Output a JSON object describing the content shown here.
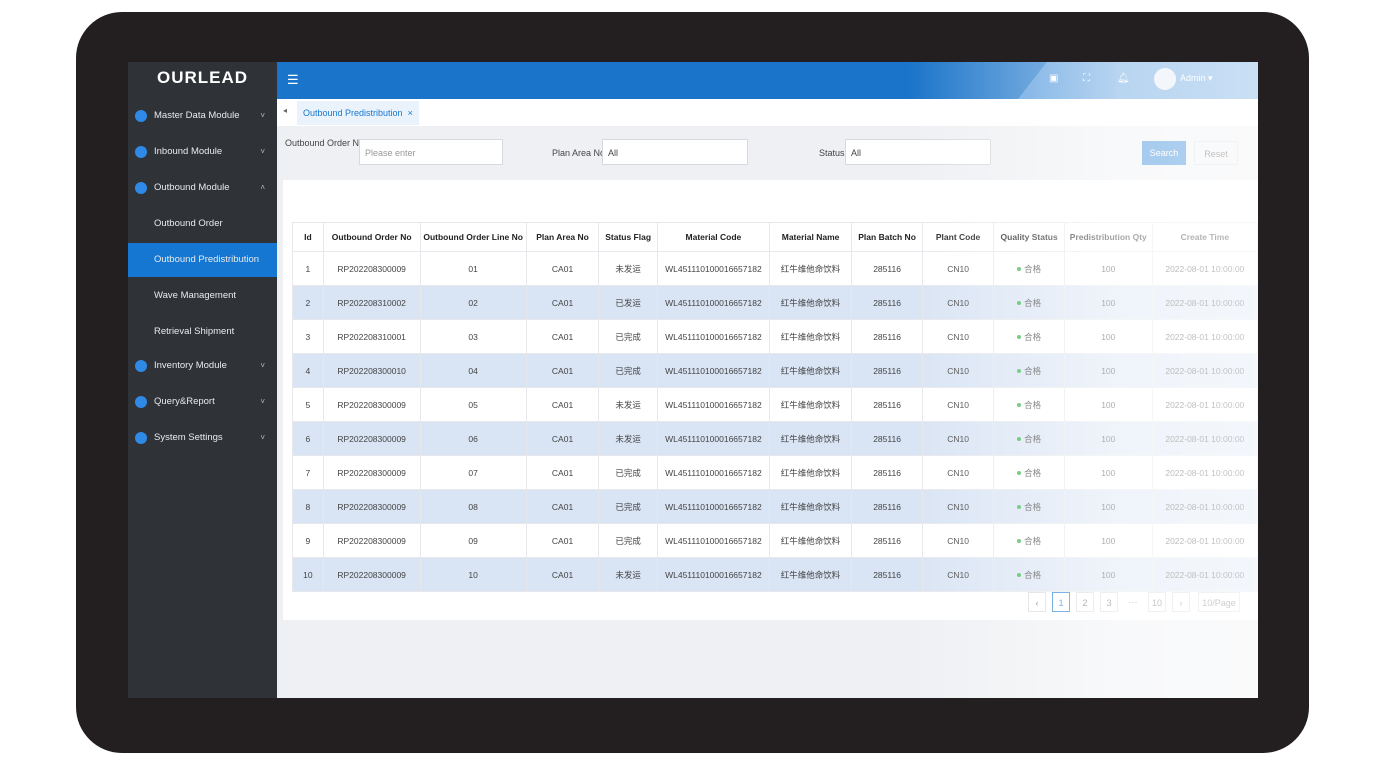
{
  "sidebar": {
    "logo": "OURLEAD",
    "modules": [
      {
        "label": "Master Data Module"
      },
      {
        "label": "Inbound Module"
      },
      {
        "label": "Outbound Module"
      }
    ],
    "outbound_items": [
      {
        "label": "Outbound Order"
      },
      {
        "label": "Outbound Predistribution",
        "active": true
      },
      {
        "label": "Wave Management"
      },
      {
        "label": "Retrieval Shipment"
      }
    ],
    "more_modules": [
      {
        "label": "Inventory Module"
      },
      {
        "label": "Query&Report"
      },
      {
        "label": "System Settings"
      }
    ]
  },
  "header": {
    "user": "Admin"
  },
  "tabs": [
    {
      "label": "Outbound Predistribution"
    }
  ],
  "filters": {
    "order_label": "Outbound Order No",
    "order_placeholder": "Please enter",
    "area_label": "Plan Area No",
    "area_value": "All",
    "status_label": "Status",
    "status_value": "All",
    "search": "Search",
    "reset": "Reset"
  },
  "table": {
    "columns": [
      "Id",
      "Outbound Order No",
      "Outbound Order Line No",
      "Plan Area No",
      "Status Flag",
      "Material Code",
      "Material Name",
      "Plan Batch No",
      "Plant Code",
      "Quality Status",
      "Predistribution Qty",
      "Create Time"
    ],
    "rows": [
      [
        "1",
        "RP202208300009",
        "01",
        "CA01",
        "未发运",
        "WL451110100016657182",
        "红牛维他命饮料",
        "285116",
        "CN10",
        "合格",
        "100",
        "2022-08-01 10:00:00"
      ],
      [
        "2",
        "RP202208310002",
        "02",
        "CA01",
        "已发运",
        "WL451110100016657182",
        "红牛维他命饮料",
        "285116",
        "CN10",
        "合格",
        "100",
        "2022-08-01 10:00:00"
      ],
      [
        "3",
        "RP202208310001",
        "03",
        "CA01",
        "已完成",
        "WL451110100016657182",
        "红牛维他命饮料",
        "285116",
        "CN10",
        "合格",
        "100",
        "2022-08-01 10:00:00"
      ],
      [
        "4",
        "RP202208300010",
        "04",
        "CA01",
        "已完成",
        "WL451110100016657182",
        "红牛维他命饮料",
        "285116",
        "CN10",
        "合格",
        "100",
        "2022-08-01 10:00:00"
      ],
      [
        "5",
        "RP202208300009",
        "05",
        "CA01",
        "未发运",
        "WL451110100016657182",
        "红牛维他命饮料",
        "285116",
        "CN10",
        "合格",
        "100",
        "2022-08-01 10:00:00"
      ],
      [
        "6",
        "RP202208300009",
        "06",
        "CA01",
        "未发运",
        "WL451110100016657182",
        "红牛维他命饮料",
        "285116",
        "CN10",
        "合格",
        "100",
        "2022-08-01 10:00:00"
      ],
      [
        "7",
        "RP202208300009",
        "07",
        "CA01",
        "已完成",
        "WL451110100016657182",
        "红牛维他命饮料",
        "285116",
        "CN10",
        "合格",
        "100",
        "2022-08-01 10:00:00"
      ],
      [
        "8",
        "RP202208300009",
        "08",
        "CA01",
        "已完成",
        "WL451110100016657182",
        "红牛维他命饮料",
        "285116",
        "CN10",
        "合格",
        "100",
        "2022-08-01 10:00:00"
      ],
      [
        "9",
        "RP202208300009",
        "09",
        "CA01",
        "已完成",
        "WL451110100016657182",
        "红牛维他命饮料",
        "285116",
        "CN10",
        "合格",
        "100",
        "2022-08-01 10:00:00"
      ],
      [
        "10",
        "RP202208300009",
        "10",
        "CA01",
        "未发运",
        "WL451110100016657182",
        "红牛维他命饮料",
        "285116",
        "CN10",
        "合格",
        "100",
        "2022-08-01 10:00:00"
      ]
    ]
  },
  "pagination": {
    "pages": [
      "1",
      "2",
      "3",
      "···",
      "10"
    ],
    "size": "10/Page"
  }
}
